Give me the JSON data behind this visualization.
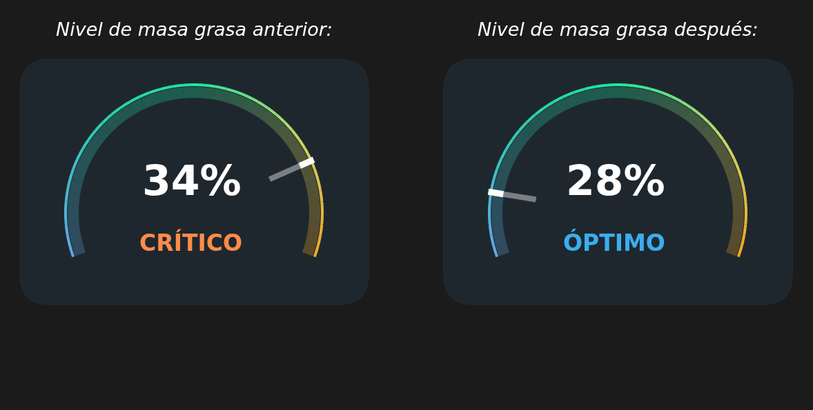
{
  "chart_data": [
    {
      "type": "other",
      "title": "Nivel de masa grasa anterior:",
      "values": [
        34
      ],
      "value_labels": [
        "34%"
      ],
      "annotations": [
        "CRÍTICO"
      ]
    },
    {
      "type": "other",
      "title": "Nivel de masa grasa después:",
      "values": [
        28
      ],
      "value_labels": [
        "28%"
      ],
      "annotations": [
        "ÓPTIMO"
      ]
    }
  ]
}
